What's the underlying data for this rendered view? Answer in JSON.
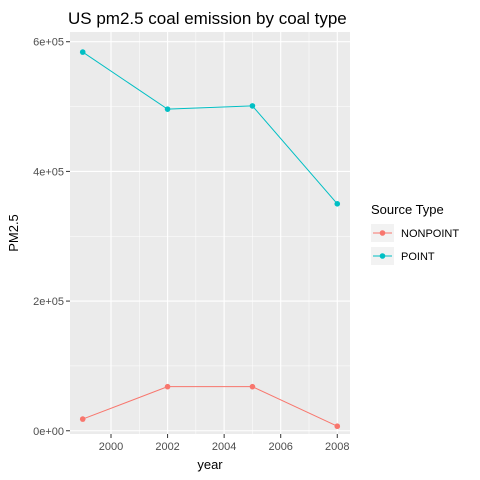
{
  "chart_data": {
    "type": "line",
    "title": "US pm2.5 coal emission by coal type",
    "xlabel": "year",
    "ylabel": "PM2.5",
    "x": [
      1999,
      2002,
      2005,
      2008
    ],
    "xticks": [
      2000,
      2002,
      2004,
      2006,
      2008
    ],
    "xtick_labels": [
      "2000",
      "2002",
      "2004",
      "2006",
      "2008"
    ],
    "yticks": [
      0,
      200000,
      400000,
      600000
    ],
    "ytick_labels": [
      "0e+00",
      "2e+05",
      "4e+05",
      "6e+05"
    ],
    "xlim": [
      1998.55,
      2008.45
    ],
    "ylim": [
      -5000,
      615000
    ],
    "grid": true,
    "legend": {
      "title": "Source Type",
      "position": "right"
    },
    "series": [
      {
        "name": "NONPOINT",
        "color": "#F8766D",
        "values": [
          18000,
          68000,
          68000,
          7000
        ]
      },
      {
        "name": "POINT",
        "color": "#00BFC4",
        "values": [
          584000,
          496000,
          501000,
          350000
        ]
      }
    ]
  }
}
